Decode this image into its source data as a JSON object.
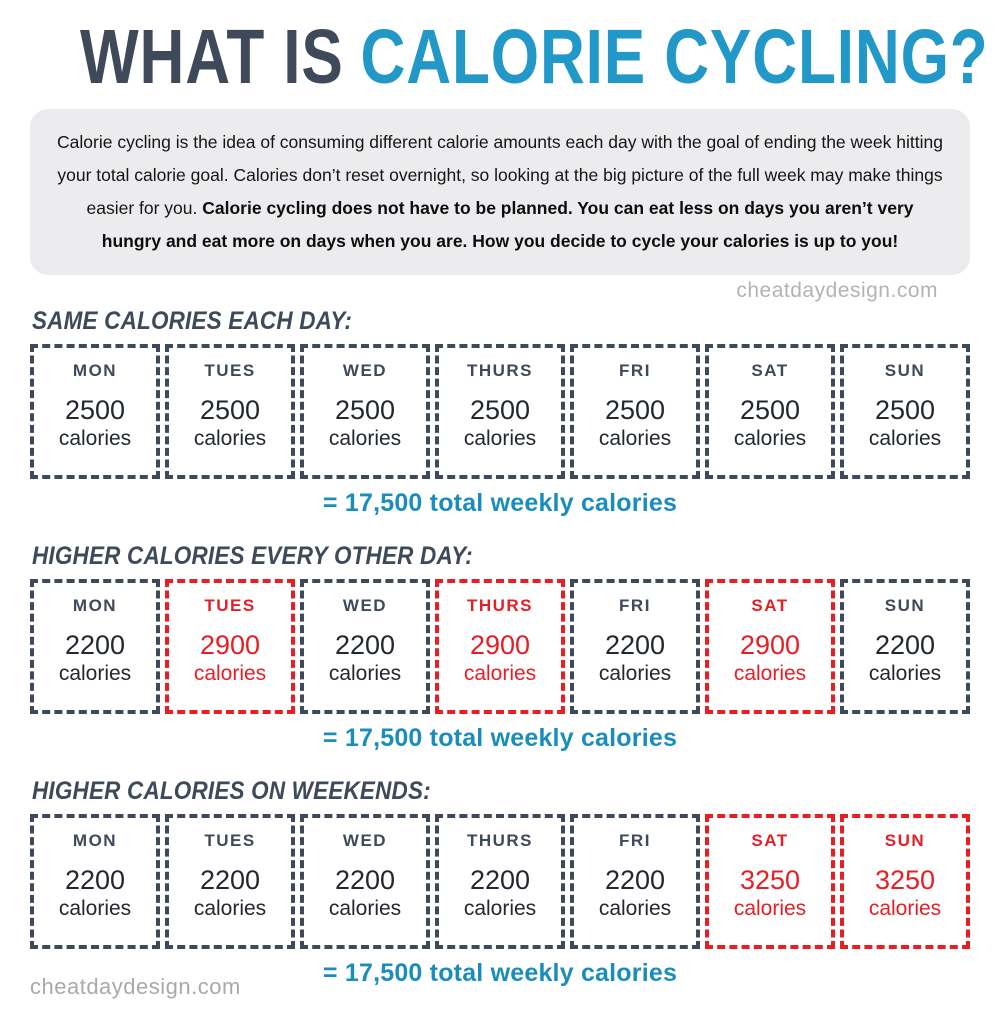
{
  "title": {
    "prefix": "WHAT IS",
    "highlight": "CALORIE CYCLING?"
  },
  "intro": {
    "normal": "Calorie cycling is the idea of consuming different calorie amounts each day with the goal of ending the week hitting your total calorie goal. Calories don’t reset overnight, so looking at the big picture of the full week may make things easier for you. ",
    "bold": "Calorie cycling does not have to be planned. You can eat less on days you aren’t very hungry and eat more on days when you are. How you decide to cycle your calories is up to you!"
  },
  "watermark": {
    "top": "cheatdaydesign.com",
    "bottom": "cheatdaydesign.com"
  },
  "colors": {
    "dark": "#3e4a59",
    "text_dark": "#232830",
    "blue": "#2198c8",
    "blue_total": "#1b8dbd",
    "red": "#e81e25",
    "intro_bg": "#ececee",
    "watermark_gray": "#b3b3b3"
  },
  "sections": [
    {
      "heading": "SAME CALORIES EACH DAY:",
      "total": "= 17,500 total weekly calories",
      "days": [
        {
          "label": "MON",
          "value": "2500",
          "unit": "calories",
          "highlight": false
        },
        {
          "label": "TUES",
          "value": "2500",
          "unit": "calories",
          "highlight": false
        },
        {
          "label": "WED",
          "value": "2500",
          "unit": "calories",
          "highlight": false
        },
        {
          "label": "THURS",
          "value": "2500",
          "unit": "calories",
          "highlight": false
        },
        {
          "label": "FRI",
          "value": "2500",
          "unit": "calories",
          "highlight": false
        },
        {
          "label": "SAT",
          "value": "2500",
          "unit": "calories",
          "highlight": false
        },
        {
          "label": "SUN",
          "value": "2500",
          "unit": "calories",
          "highlight": false
        }
      ]
    },
    {
      "heading": "HIGHER CALORIES EVERY OTHER DAY:",
      "total": "= 17,500 total weekly calories",
      "days": [
        {
          "label": "MON",
          "value": "2200",
          "unit": "calories",
          "highlight": false
        },
        {
          "label": "TUES",
          "value": "2900",
          "unit": "calories",
          "highlight": true
        },
        {
          "label": "WED",
          "value": "2200",
          "unit": "calories",
          "highlight": false
        },
        {
          "label": "THURS",
          "value": "2900",
          "unit": "calories",
          "highlight": true
        },
        {
          "label": "FRI",
          "value": "2200",
          "unit": "calories",
          "highlight": false
        },
        {
          "label": "SAT",
          "value": "2900",
          "unit": "calories",
          "highlight": true
        },
        {
          "label": "SUN",
          "value": "2200",
          "unit": "calories",
          "highlight": false
        }
      ]
    },
    {
      "heading": "HIGHER CALORIES ON WEEKENDS:",
      "total": "= 17,500 total weekly calories",
      "days": [
        {
          "label": "MON",
          "value": "2200",
          "unit": "calories",
          "highlight": false
        },
        {
          "label": "TUES",
          "value": "2200",
          "unit": "calories",
          "highlight": false
        },
        {
          "label": "WED",
          "value": "2200",
          "unit": "calories",
          "highlight": false
        },
        {
          "label": "THURS",
          "value": "2200",
          "unit": "calories",
          "highlight": false
        },
        {
          "label": "FRI",
          "value": "2200",
          "unit": "calories",
          "highlight": false
        },
        {
          "label": "SAT",
          "value": "3250",
          "unit": "calories",
          "highlight": true
        },
        {
          "label": "SUN",
          "value": "3250",
          "unit": "calories",
          "highlight": true
        }
      ]
    }
  ]
}
